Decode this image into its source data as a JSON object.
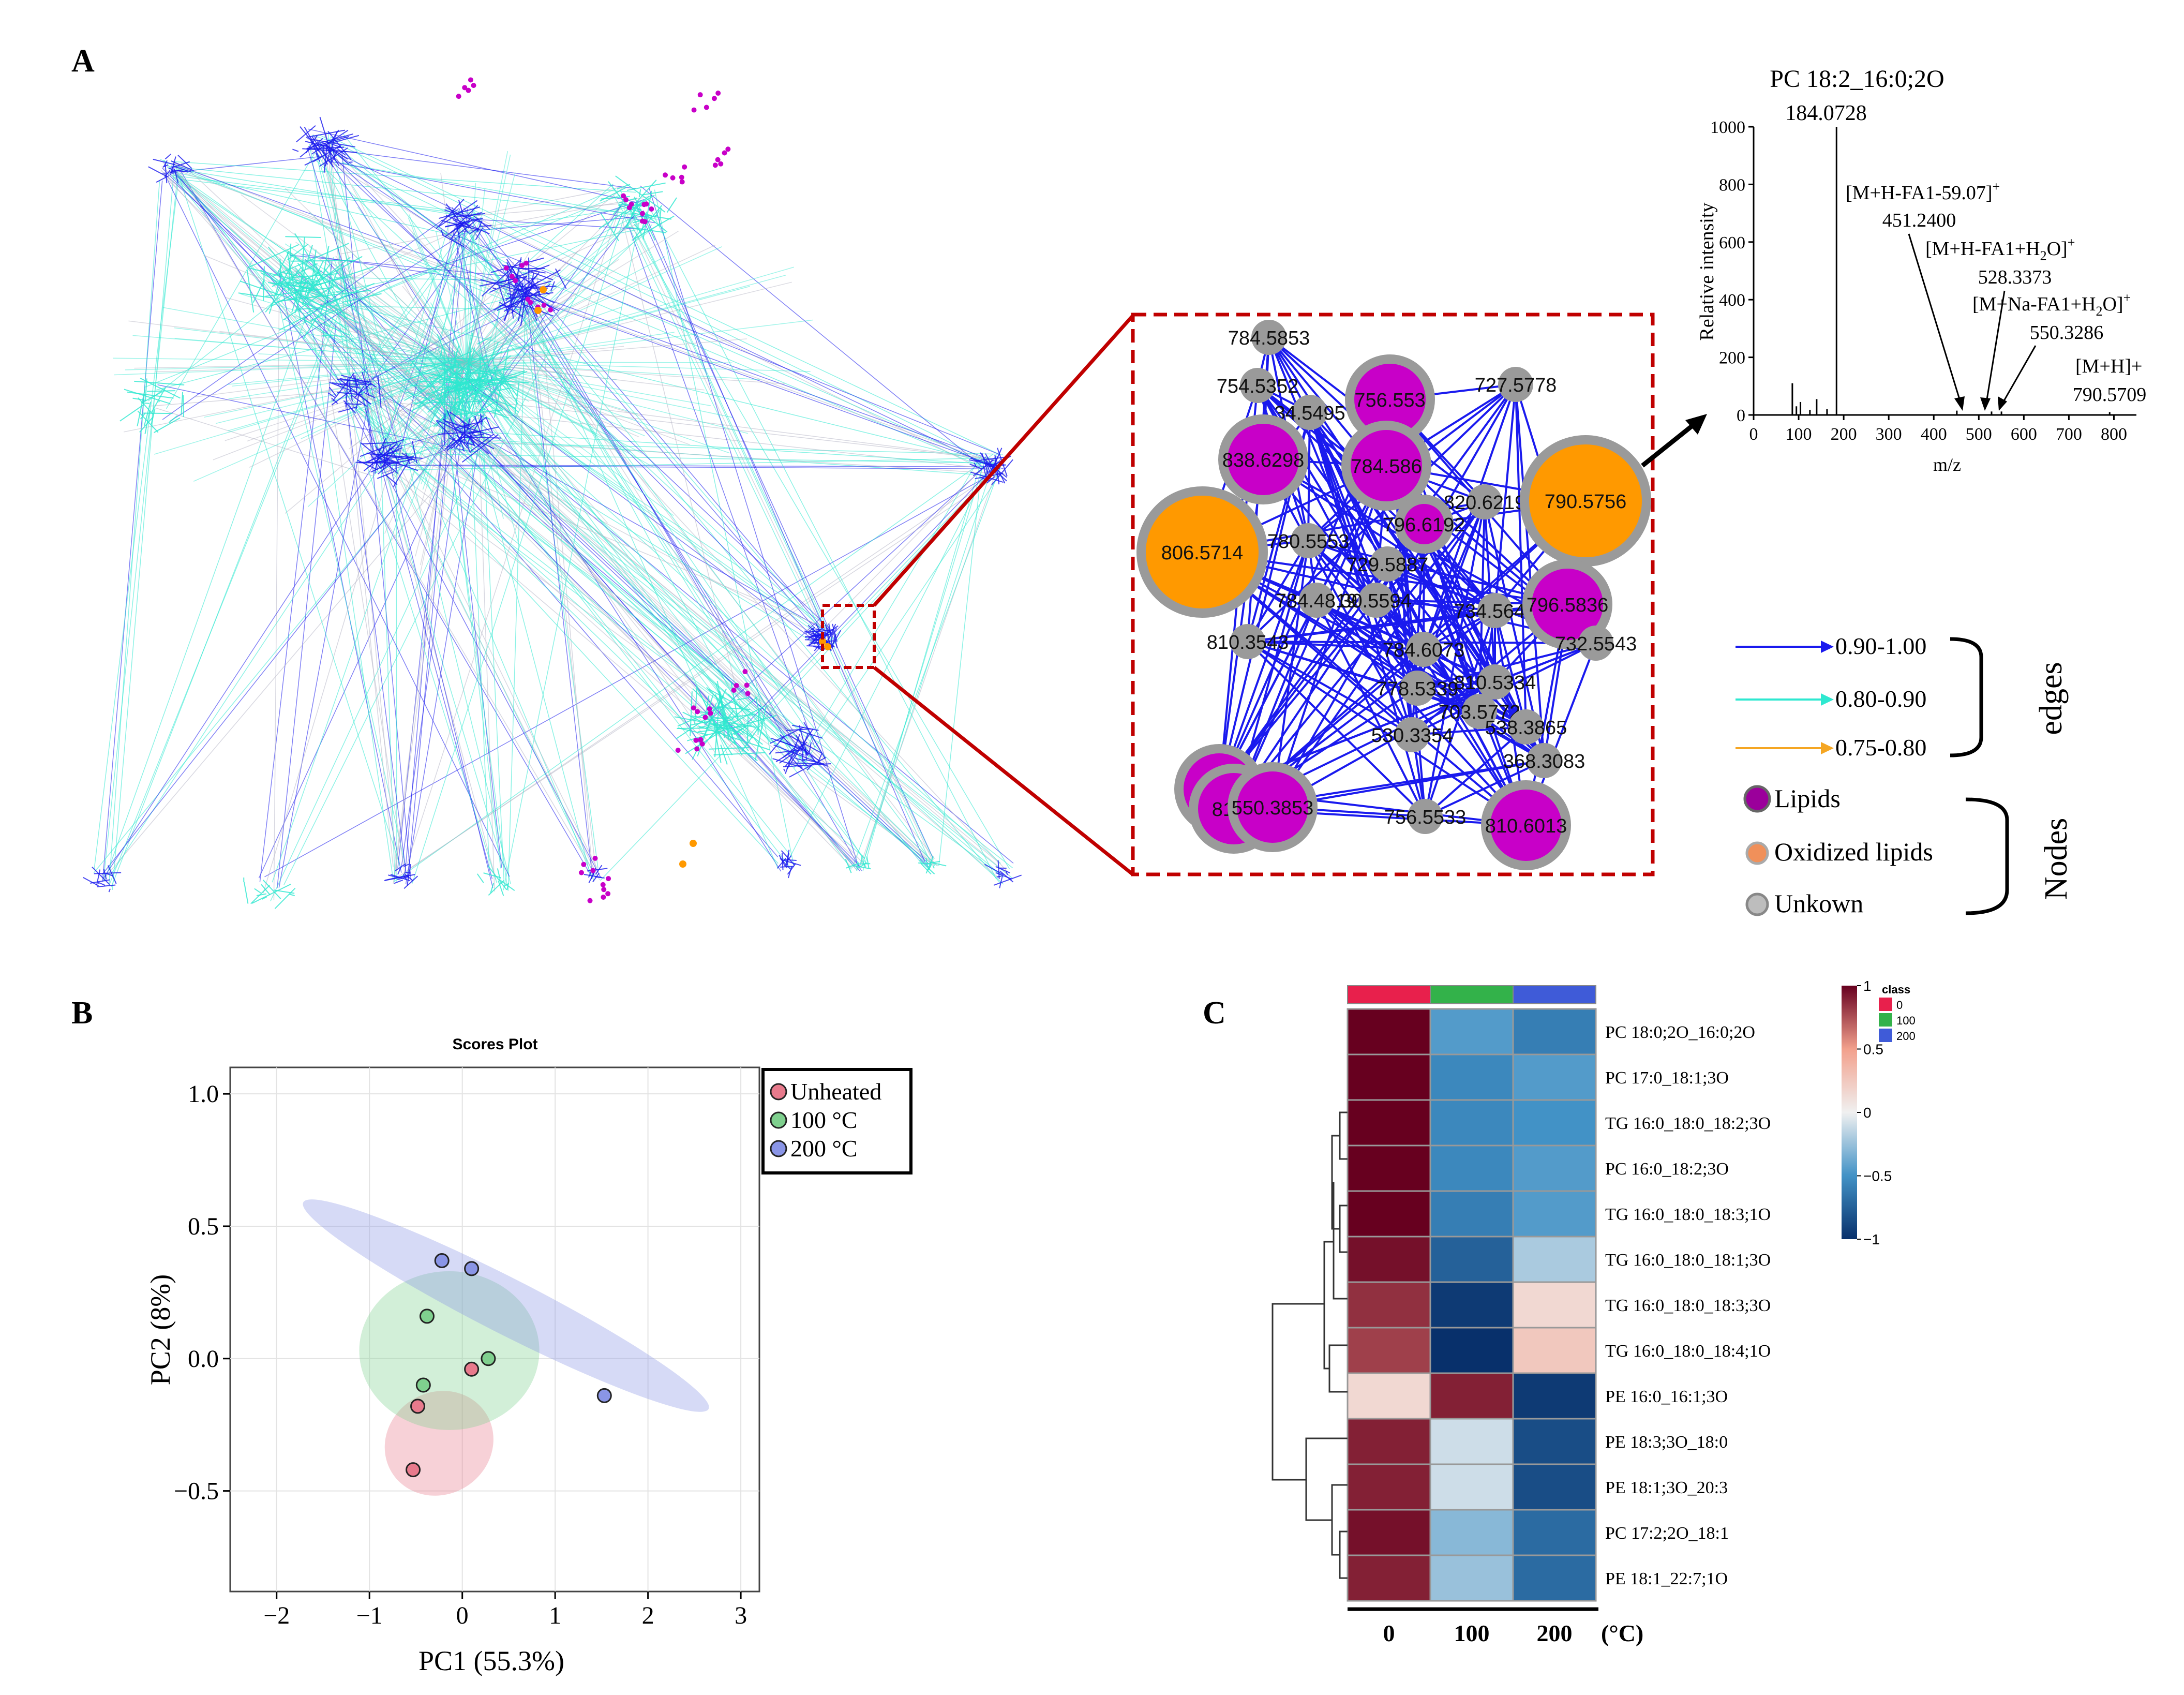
{
  "colors": {
    "lipid_node": "#c800c8",
    "oxidized_node": "#ff9900",
    "unknown_node": "#9a9a9a",
    "edge_high": "#1a1aee",
    "edge_mid": "#2ee8d0",
    "edge_low": "#f5a623",
    "frame_red": "#c00000",
    "unheated": "#e87a8c",
    "c100": "#7fd08e",
    "c200": "#8a95e6"
  },
  "panel_labels": {
    "a": "A",
    "b": "B",
    "c": "C"
  },
  "panel_a": {
    "network_nodes": [
      {
        "label": "784.5853",
        "type": "unknown",
        "size": "small"
      },
      {
        "label": "754.5352",
        "type": "unknown",
        "size": "small"
      },
      {
        "label": "756.553",
        "type": "lipid",
        "size": "medium"
      },
      {
        "label": "727.5778",
        "type": "unknown",
        "size": "small"
      },
      {
        "label": "34.5495",
        "type": "unknown",
        "size": "small"
      },
      {
        "label": "838.6298",
        "type": "lipid",
        "size": "medium"
      },
      {
        "label": "784.586",
        "type": "lipid",
        "size": "medium"
      },
      {
        "label": "820.6219",
        "type": "unknown",
        "size": "small"
      },
      {
        "label": "790.5756",
        "type": "oxidized",
        "size": "large"
      },
      {
        "label": "806.5714",
        "type": "oxidized",
        "size": "large"
      },
      {
        "label": "780.5553",
        "type": "unknown",
        "size": "small"
      },
      {
        "label": "796.6192",
        "type": "lipid",
        "size": "small"
      },
      {
        "label": "729.5887",
        "type": "unknown",
        "size": "small"
      },
      {
        "label": "784.4819",
        "type": "unknown",
        "size": "small"
      },
      {
        "label": "30.5594",
        "type": "unknown",
        "size": "small"
      },
      {
        "label": "734.5647",
        "type": "unknown",
        "size": "small"
      },
      {
        "label": "796.5836",
        "type": "lipid",
        "size": "medium"
      },
      {
        "label": "810.3543",
        "type": "unknown",
        "size": "small"
      },
      {
        "label": "784.6073",
        "type": "unknown",
        "size": "small"
      },
      {
        "label": "732.5543",
        "type": "unknown",
        "size": "small"
      },
      {
        "label": "778.5339",
        "type": "unknown",
        "size": "small"
      },
      {
        "label": "810.5334",
        "type": "unknown",
        "size": "small"
      },
      {
        "label": "703.5772",
        "type": "unknown",
        "size": "small"
      },
      {
        "label": "530.3354",
        "type": "unknown",
        "size": "small"
      },
      {
        "label": "538.3865",
        "type": "unknown",
        "size": "small"
      },
      {
        "label": "368.3083",
        "type": "unknown",
        "size": "small"
      },
      {
        "label": "832",
        "type": "lipid",
        "size": "medium"
      },
      {
        "label": "8122",
        "type": "lipid",
        "size": "medium"
      },
      {
        "label": "550.3853",
        "type": "lipid",
        "size": "medium"
      },
      {
        "label": "756.5533",
        "type": "unknown",
        "size": "small"
      },
      {
        "label": "810.6013",
        "type": "lipid",
        "size": "medium"
      }
    ],
    "spectrum": {
      "title": "PC 18:2_16:0;2O",
      "xlabel": "m/z",
      "ylabel": "Relative intensity",
      "xticks": [
        "0",
        "100",
        "200",
        "300",
        "400",
        "500",
        "600",
        "700",
        "800"
      ],
      "yticks": [
        "0",
        "200",
        "400",
        "600",
        "800",
        "1000"
      ],
      "base_peak_label": "184.0728",
      "annotations": [
        {
          "ion": "[M+H-FA1-59.07]",
          "sup": "+",
          "mz": "451.2400"
        },
        {
          "ion": "[M+H-FA1+H",
          "sub": "2",
          "ion2": "O]",
          "sup": "+",
          "mz": "528.3373"
        },
        {
          "ion": "[M+Na-FA1+H",
          "sub": "2",
          "ion2": "O]",
          "sup": "+",
          "mz": "550.3286"
        },
        {
          "ion": "[M+H]+",
          "mz": "790.5709"
        }
      ]
    },
    "legend": {
      "edges": [
        {
          "range": "0.90-1.00",
          "color": "#1a1aee"
        },
        {
          "range": "0.80-0.90",
          "color": "#2ee8d0"
        },
        {
          "range": "0.75-0.80",
          "color": "#f5a623"
        }
      ],
      "edges_title": "edges",
      "nodes": [
        {
          "label": "Lipids",
          "color": "#9b009b"
        },
        {
          "label": "Oxidized lipids",
          "color": "#f0905a"
        },
        {
          "label": "Unkown",
          "color": "#bdbdbd"
        }
      ],
      "nodes_title": "Nodes"
    }
  },
  "chart_data": [
    {
      "type": "bar",
      "title": "PC 18:2_16:0;2O",
      "xlabel": "m/z",
      "ylabel": "Relative intensity",
      "xlim": [
        0,
        850
      ],
      "ylim": [
        0,
        1000
      ],
      "x": [
        86,
        95,
        104,
        125,
        140,
        163,
        184.0728,
        451.24,
        528.3373,
        550.3286,
        790.5709
      ],
      "values": [
        110,
        30,
        45,
        18,
        55,
        20,
        1000,
        15,
        12,
        12,
        10
      ]
    },
    {
      "type": "scatter",
      "title": "Scores Plot",
      "xlabel": "PC1 (55.3%)",
      "ylabel": "PC2 (8%)",
      "xlim": [
        -2.5,
        3.2
      ],
      "ylim": [
        -0.88,
        1.1
      ],
      "xticks": [
        "−2",
        "−1",
        "0",
        "1",
        "2",
        "3"
      ],
      "yticks": [
        "−0.5",
        "0.0",
        "0.5",
        "1.0"
      ],
      "grid": true,
      "legend_position": "top-right",
      "series": [
        {
          "name": "Unheated",
          "color": "#e87a8c",
          "points": [
            [
              -0.53,
              -0.42
            ],
            [
              -0.48,
              -0.18
            ],
            [
              0.1,
              -0.04
            ]
          ],
          "ellipse": {
            "cx": -0.25,
            "cy": -0.32,
            "rx": 0.55,
            "ry": 0.14,
            "angle_deg": -58
          }
        },
        {
          "name": "100 °C",
          "color": "#7fd08e",
          "points": [
            [
              -0.38,
              0.16
            ],
            [
              -0.42,
              -0.1
            ],
            [
              0.28,
              0.0
            ]
          ],
          "ellipse": {
            "cx": -0.14,
            "cy": 0.03,
            "rx": 0.97,
            "ry": 0.2,
            "angle_deg": 0
          }
        },
        {
          "name": "200 °C",
          "color": "#8a95e6",
          "points": [
            [
              -0.22,
              0.37
            ],
            [
              0.1,
              0.34
            ],
            [
              1.53,
              -0.14
            ]
          ],
          "ellipse": {
            "cx": 0.47,
            "cy": 0.2,
            "rx": 2.45,
            "ry": 0.07,
            "angle_deg": -27
          }
        }
      ]
    },
    {
      "type": "heatmap",
      "columns": [
        "0",
        "100",
        "200"
      ],
      "column_unit": "(°C)",
      "rows": [
        "PC 18:0;2O_16:0;2O",
        "PC 17:0_18:1;3O",
        "TG 16:0_18:0_18:2;3O",
        "PC 16:0_18:2;3O",
        "TG 16:0_18:0_18:3;1O",
        "TG 16:0_18:0_18:1;3O",
        "TG 16:0_18:0_18:3;3O",
        "TG 16:0_18:0_18:4;1O",
        "PE 16:0_16:1;3O",
        "PE 18:3;3O_18:0",
        "PE 18:1;3O_20:3",
        "PC 17:2;2O_18:1",
        "PE 18:1_22:7;1O"
      ],
      "values": [
        [
          1.0,
          -0.45,
          -0.6
        ],
        [
          1.0,
          -0.55,
          -0.45
        ],
        [
          1.0,
          -0.55,
          -0.5
        ],
        [
          1.0,
          -0.55,
          -0.45
        ],
        [
          1.0,
          -0.6,
          -0.45
        ],
        [
          0.95,
          -0.75,
          -0.2
        ],
        [
          0.85,
          -0.95,
          0.15
        ],
        [
          0.8,
          -1.0,
          0.25
        ],
        [
          0.15,
          0.9,
          -0.95
        ],
        [
          0.9,
          -0.1,
          -0.85
        ],
        [
          0.9,
          -0.1,
          -0.85
        ],
        [
          0.95,
          -0.3,
          -0.7
        ],
        [
          0.9,
          -0.25,
          -0.7
        ]
      ],
      "class_bar_colors": [
        "#e8204c",
        "#33b24a",
        "#3f5bd8"
      ],
      "colorbar": {
        "ticks": [
          "1",
          "0.5",
          "0",
          "−0.5",
          "−1"
        ],
        "range": [
          -1,
          1
        ]
      },
      "class_legend": {
        "title": "class",
        "items": [
          "0",
          "100",
          "200"
        ]
      }
    }
  ]
}
